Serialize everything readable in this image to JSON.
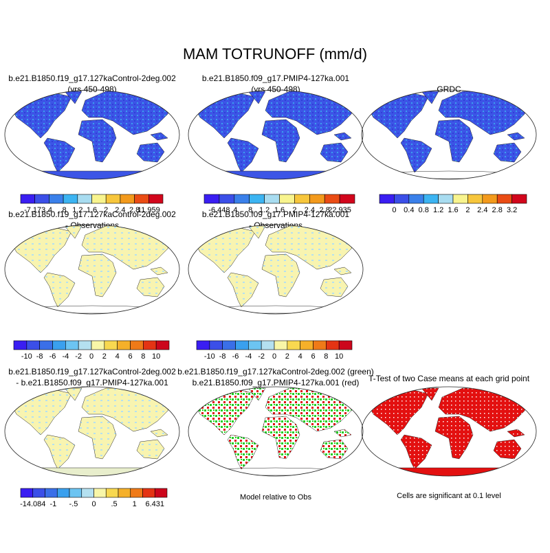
{
  "title": "MAM TOTRUNOFF (mm/d)",
  "panels": [
    {
      "title": [
        "b.e21.B1850.f19_g17.127kaControl-2deg.002",
        "(yrs 450-498)"
      ],
      "colorbar": {
        "labels": [
          "-7.173",
          ".4",
          ".8",
          "1.2",
          "1.6",
          "2",
          "2.4",
          "2.8",
          "11.959"
        ],
        "colors": [
          "#3a1ef2",
          "#3b4fe8",
          "#3a80ea",
          "#3cb4f2",
          "#a8dcf0",
          "#f8f48e",
          "#f7c63c",
          "#f39a1c",
          "#ea4c14",
          "#d2061c"
        ]
      }
    },
    {
      "title": [
        "b.e21.B1850.f09_g17.PMIP4-127ka.001",
        "(yrs 450-498)"
      ],
      "colorbar": {
        "labels": [
          "-6.448",
          ".4",
          ".8",
          "1.2",
          "1.6",
          "2",
          "2.4",
          "2.8",
          "22.935"
        ],
        "colors": [
          "#3a1ef2",
          "#3b4fe8",
          "#3a80ea",
          "#3cb4f2",
          "#a8dcf0",
          "#f8f48e",
          "#f7c63c",
          "#f39a1c",
          "#ea4c14",
          "#d2061c"
        ]
      }
    },
    {
      "title": [
        "GRDC"
      ],
      "colorbar": {
        "labels": [
          "0",
          "0.4",
          "0.8",
          "1.2",
          "1.6",
          "2",
          "2.4",
          "2.8",
          "3.2"
        ],
        "colors": [
          "#3a1ef2",
          "#3b4fe8",
          "#3a80ea",
          "#3cb4f2",
          "#a8dcf0",
          "#f8f48e",
          "#f7c63c",
          "#f39a1c",
          "#ea4c14",
          "#d2061c"
        ]
      }
    },
    {
      "title": [
        "b.e21.B1850.f19_g17.127kaControl-2deg.002",
        "- Observations"
      ],
      "colorbar": {
        "labels": [
          "-10",
          "-8",
          "-6",
          "-4",
          "-2",
          "0",
          "2",
          "4",
          "6",
          "8",
          "10"
        ],
        "colors": [
          "#3a1ef2",
          "#3b4fe8",
          "#3a6fe8",
          "#3aa0ee",
          "#6cc4f2",
          "#b4e0f0",
          "#f8f6a8",
          "#f8d850",
          "#f5b02a",
          "#ef7a18",
          "#e43414",
          "#cc061c"
        ]
      }
    },
    {
      "title": [
        "b.e21.B1850.f09_g17.PMIP4-127ka.001",
        "- Observations"
      ],
      "colorbar": {
        "labels": [
          "-10",
          "-8",
          "-6",
          "-4",
          "-2",
          "0",
          "2",
          "4",
          "6",
          "8",
          "10"
        ],
        "colors": [
          "#3a1ef2",
          "#3b4fe8",
          "#3a6fe8",
          "#3aa0ee",
          "#6cc4f2",
          "#b4e0f0",
          "#f8f6a8",
          "#f8d850",
          "#f5b02a",
          "#ef7a18",
          "#e43414",
          "#cc061c"
        ]
      }
    },
    {
      "title": [
        "b.e21.B1850.f19_g17.127kaControl-2deg.002",
        "- b.e21.B1850.f09_g17.PMIP4-127ka.001"
      ],
      "colorbar": {
        "labels": [
          "-14.084",
          "-1",
          "-.5",
          "0",
          ".5",
          "1",
          "6.431"
        ],
        "colors": [
          "#3a1ef2",
          "#3b4fe8",
          "#3a6fe8",
          "#3aa0ee",
          "#6cc4f2",
          "#b4e0f0",
          "#f8f6a8",
          "#f8d850",
          "#f5b02a",
          "#ef7a18",
          "#e43414",
          "#cc061c"
        ]
      }
    },
    {
      "title": [
        "b.e21.B1850.f19_g17.127kaControl-2deg.002 (green)",
        "b.e21.B1850.f09_g17.PMIP4-127ka.001 (red)"
      ],
      "note": "Model relative to Obs"
    },
    {
      "title": [
        "T-Test of two Case means at each grid point"
      ],
      "note": "Cells are significant at 0.1 level"
    }
  ]
}
